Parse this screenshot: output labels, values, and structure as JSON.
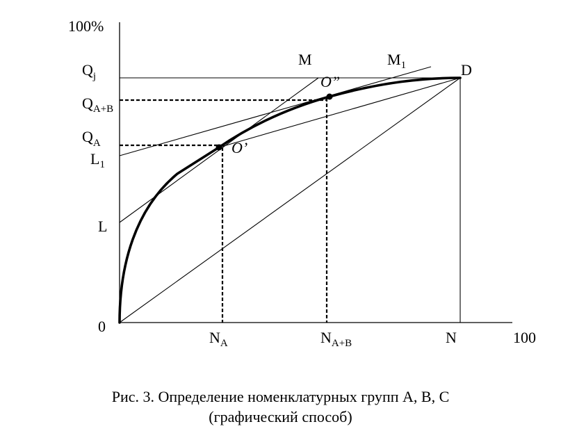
{
  "figure": {
    "axis_labels": {
      "y_top": "100%",
      "origin": "0",
      "x_right": "100"
    },
    "y_labels": {
      "qj_main": "Q",
      "qj_sub": "j",
      "qab_main": "Q",
      "qab_sub": "A+B",
      "qa_main": "Q",
      "qa_sub": "A",
      "l1_main": "L",
      "l1_sub": "1",
      "l": "L"
    },
    "x_labels": {
      "na_main": "N",
      "na_sub": "A",
      "nab_main": "N",
      "nab_sub": "A+B",
      "n": "N"
    },
    "line_labels": {
      "m": "M",
      "m1_main": "M",
      "m1_sub": "1",
      "d": "D"
    },
    "point_labels": {
      "o_prime": "O’",
      "o_double": "O”"
    }
  },
  "caption": {
    "line1": "Рис. 3. Определение номенклатурных групп А, В, С",
    "line2": "(графический способ)"
  }
}
